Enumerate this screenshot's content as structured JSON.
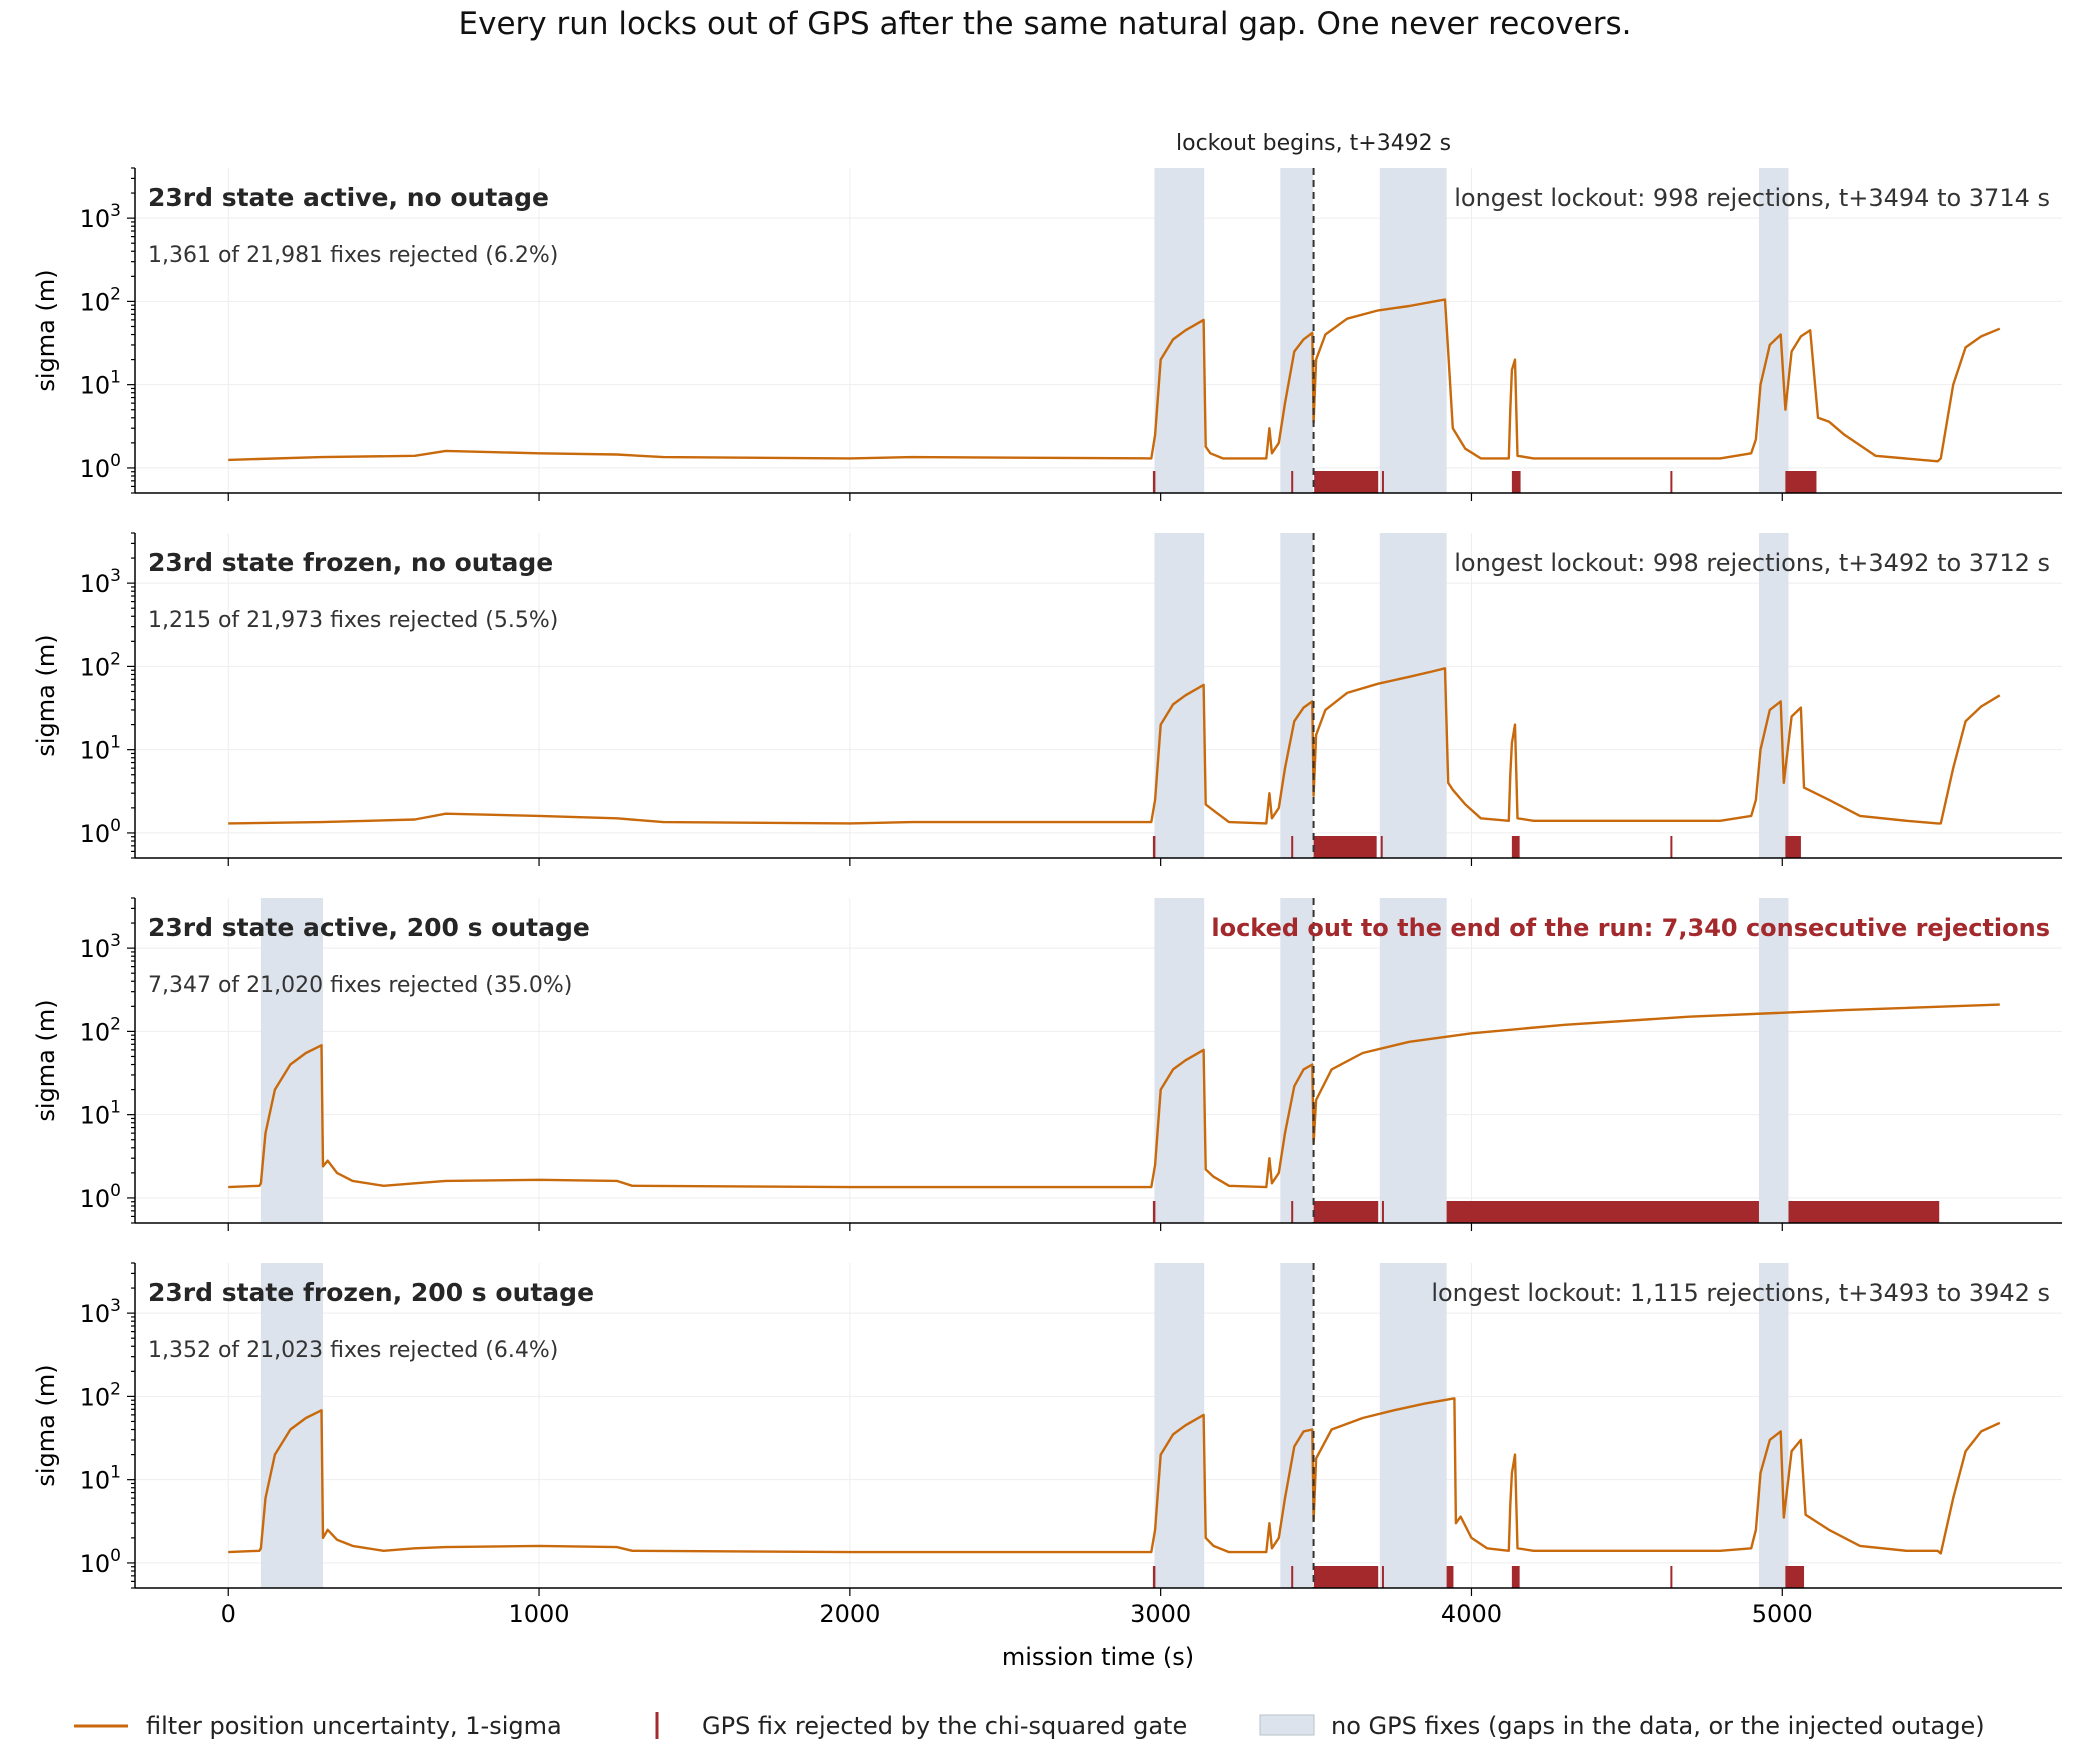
{
  "title": "Every run locks out of GPS after the same natural gap. One never recovers.",
  "colors": {
    "sigma_line": "#c8690c",
    "rejection": "#a3292d",
    "gap_fill": "#dce3ec",
    "warning_text": "#a3292d"
  },
  "chart_data": {
    "type": "line",
    "xlabel": "mission time (s)",
    "ylabel": "sigma (m)",
    "yscale": "log",
    "xlim": [
      -300,
      5900
    ],
    "ylim": [
      0.5,
      4000
    ],
    "xticks": [
      0,
      1000,
      2000,
      3000,
      4000,
      5000
    ],
    "yticks": [
      {
        "value": 1,
        "base": "10",
        "exp": "0"
      },
      {
        "value": 10,
        "base": "10",
        "exp": "1"
      },
      {
        "value": 100,
        "base": "10",
        "exp": "2"
      },
      {
        "value": 1000,
        "base": "10",
        "exp": "3"
      }
    ],
    "grid": true,
    "natural_gaps": [
      [
        2980,
        3140
      ],
      [
        3385,
        3490
      ],
      [
        3705,
        3920
      ],
      [
        4925,
        5020
      ]
    ],
    "outage": [
      105,
      305
    ],
    "annotation": {
      "x": 3492,
      "label": "lockout begins, t+3492 s"
    },
    "legend": {
      "placement": "bottom",
      "entries": [
        {
          "label": "filter position uncertainty, 1-sigma",
          "kind": "line"
        },
        {
          "label": "GPS fix rejected by the chi-squared gate",
          "kind": "tick"
        },
        {
          "label": "no GPS fixes (gaps in the data, or the injected outage)",
          "kind": "patch"
        }
      ]
    },
    "panels": [
      {
        "title": "23rd state active, no outage",
        "subtitle": "1,361 of 21,981 fixes rejected (6.2%)",
        "note": "longest lockout: 998 rejections, t+3494 to 3714 s",
        "note_warning": false,
        "has_outage": false,
        "rejections": [
          [
            2975,
            2983
          ],
          [
            3420,
            3425
          ],
          [
            3494,
            3700
          ],
          [
            3712,
            3718
          ],
          [
            4130,
            4158
          ],
          [
            4640,
            4644
          ],
          [
            5010,
            5110
          ]
        ],
        "sigma": [
          [
            0,
            1.25
          ],
          [
            300,
            1.35
          ],
          [
            600,
            1.4
          ],
          [
            700,
            1.6
          ],
          [
            1000,
            1.5
          ],
          [
            1250,
            1.45
          ],
          [
            1400,
            1.35
          ],
          [
            2000,
            1.3
          ],
          [
            2200,
            1.35
          ],
          [
            2970,
            1.3
          ],
          [
            2982,
            2.5
          ],
          [
            3000,
            20
          ],
          [
            3040,
            35
          ],
          [
            3080,
            45
          ],
          [
            3138,
            60
          ],
          [
            3145,
            1.8
          ],
          [
            3160,
            1.5
          ],
          [
            3200,
            1.3
          ],
          [
            3340,
            1.3
          ],
          [
            3350,
            3.0
          ],
          [
            3358,
            1.5
          ],
          [
            3380,
            2
          ],
          [
            3400,
            6
          ],
          [
            3430,
            25
          ],
          [
            3460,
            35
          ],
          [
            3488,
            42
          ],
          [
            3492,
            3.5
          ],
          [
            3500,
            20
          ],
          [
            3530,
            40
          ],
          [
            3600,
            62
          ],
          [
            3700,
            78
          ],
          [
            3800,
            88
          ],
          [
            3880,
            100
          ],
          [
            3915,
            105
          ],
          [
            3925,
            25
          ],
          [
            3940,
            3.0
          ],
          [
            3980,
            1.7
          ],
          [
            4030,
            1.3
          ],
          [
            4120,
            1.3
          ],
          [
            4125,
            5
          ],
          [
            4130,
            15
          ],
          [
            4140,
            20
          ],
          [
            4148,
            1.4
          ],
          [
            4200,
            1.3
          ],
          [
            4600,
            1.3
          ],
          [
            4800,
            1.3
          ],
          [
            4900,
            1.5
          ],
          [
            4915,
            2.2
          ],
          [
            4930,
            10
          ],
          [
            4960,
            30
          ],
          [
            4995,
            40
          ],
          [
            5010,
            5
          ],
          [
            5030,
            25
          ],
          [
            5060,
            38
          ],
          [
            5090,
            45
          ],
          [
            5115,
            4.0
          ],
          [
            5150,
            3.6
          ],
          [
            5200,
            2.5
          ],
          [
            5300,
            1.4
          ],
          [
            5500,
            1.2
          ],
          [
            5510,
            1.3
          ],
          [
            5550,
            10
          ],
          [
            5590,
            28
          ],
          [
            5640,
            38
          ],
          [
            5700,
            47
          ]
        ]
      },
      {
        "title": "23rd state frozen, no outage",
        "subtitle": "1,215 of 21,973 fixes rejected (5.5%)",
        "note": "longest lockout: 998 rejections, t+3492 to 3712 s",
        "note_warning": false,
        "has_outage": false,
        "rejections": [
          [
            2975,
            2983
          ],
          [
            3420,
            3425
          ],
          [
            3492,
            3695
          ],
          [
            3708,
            3714
          ],
          [
            4130,
            4155
          ],
          [
            4640,
            4644
          ],
          [
            5010,
            5060
          ]
        ],
        "sigma": [
          [
            0,
            1.3
          ],
          [
            300,
            1.35
          ],
          [
            600,
            1.45
          ],
          [
            700,
            1.7
          ],
          [
            1000,
            1.6
          ],
          [
            1250,
            1.5
          ],
          [
            1400,
            1.35
          ],
          [
            2000,
            1.3
          ],
          [
            2200,
            1.35
          ],
          [
            2970,
            1.35
          ],
          [
            2982,
            2.5
          ],
          [
            3000,
            20
          ],
          [
            3040,
            35
          ],
          [
            3080,
            45
          ],
          [
            3138,
            60
          ],
          [
            3145,
            2.2
          ],
          [
            3175,
            1.8
          ],
          [
            3220,
            1.35
          ],
          [
            3340,
            1.3
          ],
          [
            3350,
            3.0
          ],
          [
            3358,
            1.5
          ],
          [
            3380,
            2
          ],
          [
            3400,
            6
          ],
          [
            3430,
            22
          ],
          [
            3460,
            32
          ],
          [
            3488,
            38
          ],
          [
            3492,
            2.8
          ],
          [
            3500,
            15
          ],
          [
            3530,
            30
          ],
          [
            3600,
            48
          ],
          [
            3700,
            62
          ],
          [
            3800,
            75
          ],
          [
            3880,
            88
          ],
          [
            3915,
            95
          ],
          [
            3925,
            4
          ],
          [
            3940,
            3.3
          ],
          [
            3980,
            2.2
          ],
          [
            4030,
            1.5
          ],
          [
            4120,
            1.4
          ],
          [
            4125,
            5
          ],
          [
            4130,
            12
          ],
          [
            4140,
            20
          ],
          [
            4148,
            1.5
          ],
          [
            4200,
            1.4
          ],
          [
            4600,
            1.4
          ],
          [
            4800,
            1.4
          ],
          [
            4900,
            1.6
          ],
          [
            4915,
            2.5
          ],
          [
            4930,
            10
          ],
          [
            4960,
            30
          ],
          [
            4995,
            38
          ],
          [
            5005,
            4
          ],
          [
            5030,
            25
          ],
          [
            5060,
            32
          ],
          [
            5070,
            3.5
          ],
          [
            5150,
            2.5
          ],
          [
            5250,
            1.6
          ],
          [
            5400,
            1.4
          ],
          [
            5500,
            1.3
          ],
          [
            5510,
            1.3
          ],
          [
            5550,
            6
          ],
          [
            5590,
            22
          ],
          [
            5640,
            33
          ],
          [
            5700,
            45
          ]
        ]
      },
      {
        "title": "23rd state active, 200 s outage",
        "subtitle": "7,347 of 21,020 fixes rejected (35.0%)",
        "note": "locked out to the end of the run: 7,340 consecutive rejections",
        "note_warning": true,
        "has_outage": true,
        "rejections": [
          [
            2975,
            2983
          ],
          [
            3420,
            3425
          ],
          [
            3492,
            3700
          ],
          [
            3712,
            3718
          ],
          [
            3920,
            4925
          ],
          [
            5020,
            5505
          ]
        ],
        "sigma": [
          [
            0,
            1.35
          ],
          [
            100,
            1.4
          ],
          [
            105,
            1.5
          ],
          [
            120,
            6
          ],
          [
            150,
            20
          ],
          [
            200,
            40
          ],
          [
            250,
            55
          ],
          [
            300,
            68
          ],
          [
            305,
            2.4
          ],
          [
            320,
            2.8
          ],
          [
            350,
            2.0
          ],
          [
            400,
            1.6
          ],
          [
            500,
            1.4
          ],
          [
            600,
            1.5
          ],
          [
            700,
            1.6
          ],
          [
            1000,
            1.65
          ],
          [
            1250,
            1.6
          ],
          [
            1300,
            1.4
          ],
          [
            2000,
            1.35
          ],
          [
            2970,
            1.35
          ],
          [
            2982,
            2.5
          ],
          [
            3000,
            20
          ],
          [
            3040,
            35
          ],
          [
            3080,
            45
          ],
          [
            3138,
            60
          ],
          [
            3145,
            2.2
          ],
          [
            3170,
            1.8
          ],
          [
            3220,
            1.4
          ],
          [
            3340,
            1.35
          ],
          [
            3350,
            3.0
          ],
          [
            3358,
            1.5
          ],
          [
            3380,
            2
          ],
          [
            3400,
            6
          ],
          [
            3430,
            22
          ],
          [
            3460,
            35
          ],
          [
            3488,
            40
          ],
          [
            3492,
            4.5
          ],
          [
            3500,
            15
          ],
          [
            3550,
            35
          ],
          [
            3650,
            55
          ],
          [
            3800,
            75
          ],
          [
            4000,
            95
          ],
          [
            4300,
            120
          ],
          [
            4700,
            150
          ],
          [
            5200,
            180
          ],
          [
            5700,
            210
          ]
        ]
      },
      {
        "title": "23rd state frozen, 200 s outage",
        "subtitle": "1,352 of 21,023 fixes rejected (6.4%)",
        "note": "longest lockout: 1,115 rejections, t+3493 to 3942 s",
        "note_warning": false,
        "has_outage": true,
        "rejections": [
          [
            2975,
            2983
          ],
          [
            3420,
            3425
          ],
          [
            3493,
            3700
          ],
          [
            3712,
            3718
          ],
          [
            3920,
            3942
          ],
          [
            4130,
            4155
          ],
          [
            4640,
            4644
          ],
          [
            5010,
            5070
          ]
        ],
        "sigma": [
          [
            0,
            1.35
          ],
          [
            100,
            1.4
          ],
          [
            105,
            1.5
          ],
          [
            120,
            6
          ],
          [
            150,
            20
          ],
          [
            200,
            40
          ],
          [
            250,
            55
          ],
          [
            300,
            68
          ],
          [
            305,
            2.0
          ],
          [
            320,
            2.5
          ],
          [
            350,
            1.9
          ],
          [
            400,
            1.6
          ],
          [
            500,
            1.4
          ],
          [
            600,
            1.5
          ],
          [
            700,
            1.55
          ],
          [
            1000,
            1.6
          ],
          [
            1250,
            1.55
          ],
          [
            1300,
            1.4
          ],
          [
            2000,
            1.35
          ],
          [
            2970,
            1.35
          ],
          [
            2982,
            2.5
          ],
          [
            3000,
            20
          ],
          [
            3040,
            35
          ],
          [
            3080,
            45
          ],
          [
            3138,
            60
          ],
          [
            3145,
            2.0
          ],
          [
            3170,
            1.6
          ],
          [
            3220,
            1.35
          ],
          [
            3340,
            1.35
          ],
          [
            3350,
            3.0
          ],
          [
            3358,
            1.5
          ],
          [
            3380,
            2
          ],
          [
            3400,
            6
          ],
          [
            3430,
            25
          ],
          [
            3460,
            38
          ],
          [
            3488,
            40
          ],
          [
            3492,
            3.2
          ],
          [
            3500,
            18
          ],
          [
            3550,
            40
          ],
          [
            3650,
            55
          ],
          [
            3750,
            68
          ],
          [
            3850,
            82
          ],
          [
            3945,
            95
          ],
          [
            3950,
            3.0
          ],
          [
            3965,
            3.6
          ],
          [
            4000,
            2.0
          ],
          [
            4050,
            1.5
          ],
          [
            4120,
            1.4
          ],
          [
            4125,
            5
          ],
          [
            4130,
            12
          ],
          [
            4140,
            20
          ],
          [
            4148,
            1.5
          ],
          [
            4200,
            1.4
          ],
          [
            4600,
            1.4
          ],
          [
            4800,
            1.4
          ],
          [
            4900,
            1.5
          ],
          [
            4915,
            2.5
          ],
          [
            4930,
            12
          ],
          [
            4960,
            30
          ],
          [
            4995,
            38
          ],
          [
            5005,
            3.5
          ],
          [
            5030,
            22
          ],
          [
            5060,
            30
          ],
          [
            5075,
            3.8
          ],
          [
            5150,
            2.5
          ],
          [
            5250,
            1.6
          ],
          [
            5400,
            1.4
          ],
          [
            5500,
            1.4
          ],
          [
            5510,
            1.3
          ],
          [
            5550,
            6
          ],
          [
            5590,
            22
          ],
          [
            5640,
            38
          ],
          [
            5700,
            48
          ]
        ]
      }
    ]
  }
}
